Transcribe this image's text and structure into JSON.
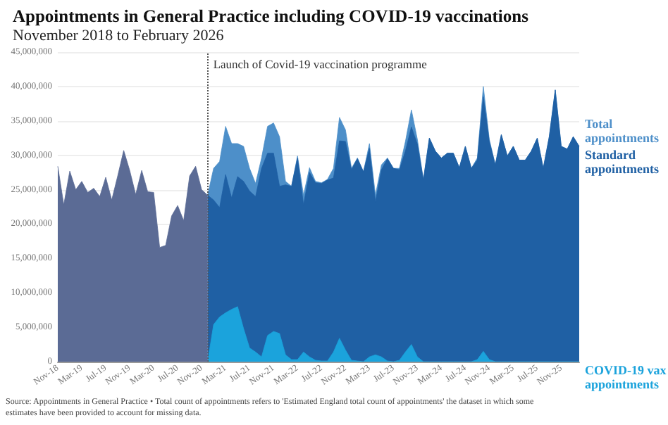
{
  "chart_data": {
    "type": "area",
    "title": "Appointments in General Practice including COVID-19 vaccinations",
    "subtitle": "November 2018 to February 2026",
    "annotations": [
      "Source: Appointments in General Practice • Total count of appointments refers to 'Estimated England total count of appointments' the dataset in which some estimates have been provided to account for missing data."
    ],
    "xlim": [
      "2018-11",
      "2026-02"
    ],
    "xticks": [
      {
        "value": "2018-11",
        "label": "Nov-18"
      },
      {
        "value": "2019-03",
        "label": "Mar-19"
      },
      {
        "value": "2019-07",
        "label": "Jul-19"
      },
      {
        "value": "2019-11",
        "label": "Nov-19"
      },
      {
        "value": "2020-03",
        "label": "Mar-20"
      },
      {
        "value": "2020-07",
        "label": "Jul-20"
      },
      {
        "value": "2020-11",
        "label": "Nov-20"
      },
      {
        "value": "2021-03",
        "label": "Mar-21"
      },
      {
        "value": "2021-07",
        "label": "Jul-21"
      },
      {
        "value": "2021-11",
        "label": "Nov-21"
      },
      {
        "value": "2022-03",
        "label": "Mar-22"
      },
      {
        "value": "2022-07",
        "label": "Jul-22"
      },
      {
        "value": "2022-11",
        "label": "Nov-22"
      },
      {
        "value": "2023-03",
        "label": "Mar-23"
      },
      {
        "value": "2023-07",
        "label": "Jul-23"
      },
      {
        "value": "2023-11",
        "label": "Nov-23"
      },
      {
        "value": "2024-03",
        "label": "Mar-24"
      },
      {
        "value": "2024-07",
        "label": "Jul-24"
      },
      {
        "value": "2024-11",
        "label": "Nov-24"
      },
      {
        "value": "2025-03",
        "label": "Mar-25"
      },
      {
        "value": "2025-07",
        "label": "Jul-25"
      },
      {
        "value": "2025-11",
        "label": "Nov-25"
      }
    ],
    "ylim": [
      0,
      45000000
    ],
    "yticks": [
      {
        "value": 0,
        "label": "0"
      },
      {
        "value": 5000000,
        "label": "5,000,000"
      },
      {
        "value": 10000000,
        "label": "10,000,000"
      },
      {
        "value": 15000000,
        "label": "15,000,000"
      },
      {
        "value": 20000000,
        "label": "20,000,000"
      },
      {
        "value": 25000000,
        "label": "25,000,000"
      },
      {
        "value": 30000000,
        "label": "30,000,000"
      },
      {
        "value": 35000000,
        "label": "35,000,000"
      },
      {
        "value": 40000000,
        "label": "40,000,000"
      },
      {
        "value": 45000000,
        "label": "45,000,000"
      }
    ],
    "grid": "y",
    "ref_lines": [
      {
        "axis": "x",
        "value": "2020-12",
        "label": "Launch of Covid-19 vaccination programme",
        "color": "#555555",
        "line_style": "dotted"
      }
    ],
    "series": [
      {
        "name": "Total appointments",
        "color": "#4d8fc9",
        "x": [
          "2020-12",
          "2021-01",
          "2021-02",
          "2021-03",
          "2021-04",
          "2021-05",
          "2021-06",
          "2021-07",
          "2021-08",
          "2021-09",
          "2021-10",
          "2021-11",
          "2021-12",
          "2022-01",
          "2022-02",
          "2022-03",
          "2022-04",
          "2022-05",
          "2022-06",
          "2022-07",
          "2022-08",
          "2022-09",
          "2022-10",
          "2022-11",
          "2022-12",
          "2023-01",
          "2023-02",
          "2023-03",
          "2023-04",
          "2023-05",
          "2023-06",
          "2023-07",
          "2023-08",
          "2023-09",
          "2023-10",
          "2023-11",
          "2023-12",
          "2024-01",
          "2024-02",
          "2024-03",
          "2024-04",
          "2024-05",
          "2024-06",
          "2024-07",
          "2024-08",
          "2024-09",
          "2024-10",
          "2024-11",
          "2024-12",
          "2025-01",
          "2025-02",
          "2025-03",
          "2025-04",
          "2025-05",
          "2025-06",
          "2025-07",
          "2025-08",
          "2025-09",
          "2025-10",
          "2025-11",
          "2025-12",
          "2026-01",
          "2026-02"
        ],
        "values": [
          24200000,
          28100000,
          29100000,
          34200000,
          31700000,
          31700000,
          31300000,
          28100000,
          25900000,
          29600000,
          34200000,
          34700000,
          32700000,
          26200000,
          25500000,
          29900000,
          24200000,
          28200000,
          26200000,
          26000000,
          26500000,
          28100000,
          35500000,
          33700000,
          28100000,
          29600000,
          27600000,
          31700000,
          24200000,
          28600000,
          29600000,
          28100000,
          28100000,
          32000000,
          36600000,
          32300000,
          26400000,
          32500000,
          30600000,
          29600000,
          30300000,
          30300000,
          28200000,
          31300000,
          28100000,
          29600000,
          40000000,
          32300000,
          28600000,
          33000000,
          29900000,
          31300000,
          29300000,
          29300000,
          30600000,
          32500000,
          28100000,
          32700000,
          39500000,
          31300000,
          30900000,
          32700000,
          31300000
        ]
      },
      {
        "name": "Standard appointments",
        "color": "#1f60a4",
        "x": [
          "2020-12",
          "2021-01",
          "2021-02",
          "2021-03",
          "2021-04",
          "2021-05",
          "2021-06",
          "2021-07",
          "2021-08",
          "2021-09",
          "2021-10",
          "2021-11",
          "2021-12",
          "2022-01",
          "2022-02",
          "2022-03",
          "2022-04",
          "2022-05",
          "2022-06",
          "2022-07",
          "2022-08",
          "2022-09",
          "2022-10",
          "2022-11",
          "2022-12",
          "2023-01",
          "2023-02",
          "2023-03",
          "2023-04",
          "2023-05",
          "2023-06",
          "2023-07",
          "2023-08",
          "2023-09",
          "2023-10",
          "2023-11",
          "2023-12",
          "2024-01",
          "2024-02",
          "2024-03",
          "2024-04",
          "2024-05",
          "2024-06",
          "2024-07",
          "2024-08",
          "2024-09",
          "2024-10",
          "2024-11",
          "2024-12",
          "2025-01",
          "2025-02",
          "2025-03",
          "2025-04",
          "2025-05",
          "2025-06",
          "2025-07",
          "2025-08",
          "2025-09",
          "2025-10",
          "2025-11",
          "2025-12",
          "2026-01",
          "2026-02"
        ],
        "values": [
          24200000,
          23500000,
          22400000,
          27200000,
          23800000,
          26900000,
          26200000,
          24800000,
          24000000,
          28100000,
          30300000,
          30300000,
          25500000,
          25700000,
          25500000,
          29600000,
          22800000,
          27500000,
          26000000,
          25900000,
          26400000,
          26700000,
          32100000,
          32000000,
          27900000,
          29500000,
          27600000,
          31000000,
          23200000,
          27900000,
          29500000,
          28100000,
          27900000,
          30600000,
          34100000,
          31600000,
          26400000,
          32500000,
          30600000,
          29600000,
          30300000,
          30300000,
          28200000,
          31300000,
          28100000,
          29300000,
          38500000,
          32000000,
          28600000,
          33000000,
          29900000,
          31300000,
          29300000,
          29300000,
          30600000,
          32500000,
          28100000,
          32700000,
          39500000,
          31300000,
          30900000,
          32700000,
          31300000
        ]
      },
      {
        "name": "COVID-19 vax appointments",
        "color": "#1ba3dc",
        "x": [
          "2020-12",
          "2021-01",
          "2021-02",
          "2021-03",
          "2021-04",
          "2021-05",
          "2021-06",
          "2021-07",
          "2021-08",
          "2021-09",
          "2021-10",
          "2021-11",
          "2021-12",
          "2022-01",
          "2022-02",
          "2022-03",
          "2022-04",
          "2022-05",
          "2022-06",
          "2022-07",
          "2022-08",
          "2022-09",
          "2022-10",
          "2022-11",
          "2022-12",
          "2023-01",
          "2023-02",
          "2023-03",
          "2023-04",
          "2023-05",
          "2023-06",
          "2023-07",
          "2023-08",
          "2023-09",
          "2023-10",
          "2023-11",
          "2023-12",
          "2024-01",
          "2024-02",
          "2024-03",
          "2024-04",
          "2024-05",
          "2024-06",
          "2024-07",
          "2024-08",
          "2024-09",
          "2024-10",
          "2024-11",
          "2024-12",
          "2025-01",
          "2025-02",
          "2025-03",
          "2025-04",
          "2025-05",
          "2025-06",
          "2025-07",
          "2025-08",
          "2025-09",
          "2025-10",
          "2025-11",
          "2025-12",
          "2026-01",
          "2026-02"
        ],
        "values": [
          0,
          5400000,
          6500000,
          7100000,
          7600000,
          8000000,
          4800000,
          2000000,
          1400000,
          700000,
          3800000,
          4400000,
          4100000,
          1000000,
          300000,
          300000,
          1400000,
          700000,
          200000,
          100000,
          100000,
          1400000,
          3400000,
          1700000,
          200000,
          100000,
          0,
          700000,
          1000000,
          700000,
          100000,
          0,
          200000,
          1400000,
          2500000,
          700000,
          0,
          0,
          0,
          0,
          0,
          0,
          0,
          0,
          0,
          300000,
          1500000,
          300000,
          0,
          0,
          0,
          0,
          0,
          0,
          0,
          0,
          0,
          0,
          0,
          0,
          0,
          0,
          0
        ]
      },
      {
        "color": "#5b6b95",
        "x": [
          "2018-11",
          "2018-12",
          "2019-01",
          "2019-02",
          "2019-03",
          "2019-04",
          "2019-05",
          "2019-06",
          "2019-07",
          "2019-08",
          "2019-09",
          "2019-10",
          "2019-11",
          "2019-12",
          "2020-01",
          "2020-02",
          "2020-03",
          "2020-04",
          "2020-05",
          "2020-06",
          "2020-07",
          "2020-08",
          "2020-09",
          "2020-10",
          "2020-11",
          "2020-12"
        ],
        "values": [
          28400000,
          22800000,
          27700000,
          25000000,
          26200000,
          24600000,
          25200000,
          24000000,
          26800000,
          23500000,
          27000000,
          30700000,
          27800000,
          24300000,
          27800000,
          24700000,
          24600000,
          16600000,
          16900000,
          21200000,
          22700000,
          20500000,
          27000000,
          28400000,
          25000000,
          24200000
        ]
      }
    ]
  }
}
